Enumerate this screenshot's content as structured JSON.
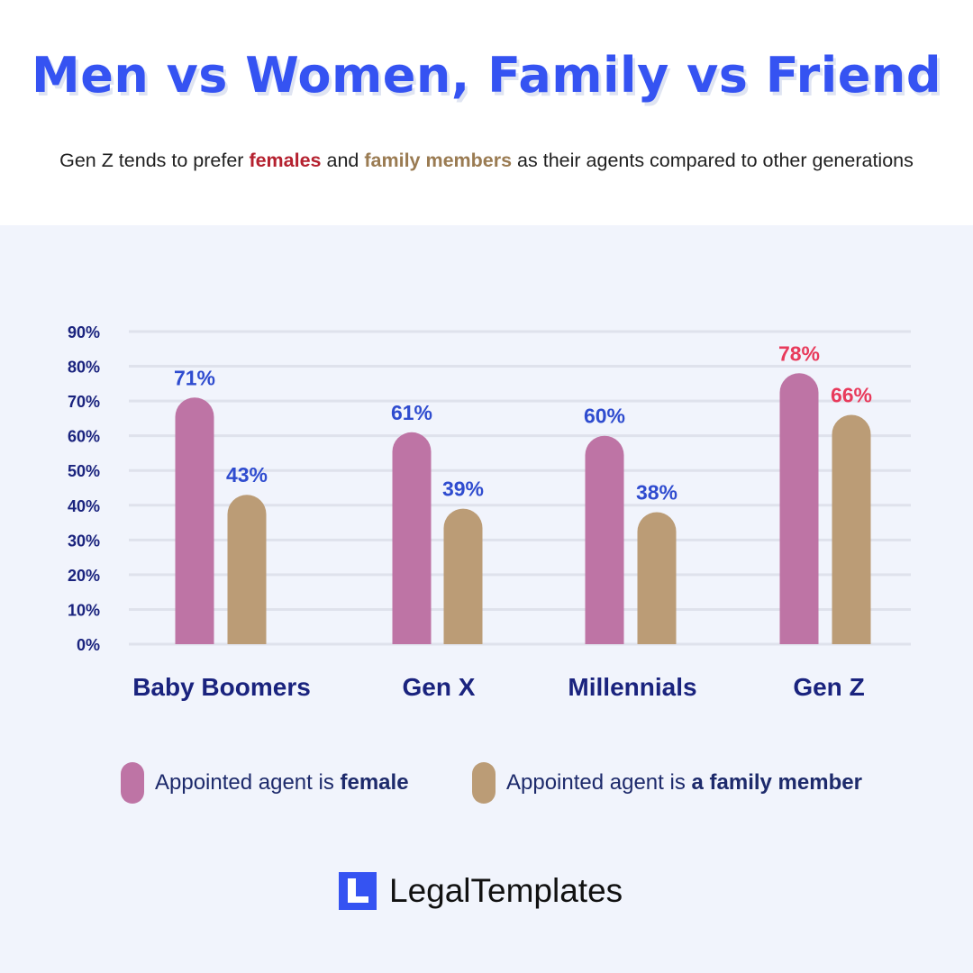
{
  "header": {
    "title": "Men vs Women, Family vs Friend",
    "subtitle_pre": "Gen Z tends to prefer ",
    "subtitle_female": "females",
    "subtitle_mid": " and ",
    "subtitle_family": "family members",
    "subtitle_post": " as their agents compared to other generations"
  },
  "legend": {
    "female_pre": "Appointed agent is ",
    "female_bold": "female",
    "family_pre": "Appointed agent is ",
    "family_bold": "a family member"
  },
  "brand": {
    "name": "LegalTemplates"
  },
  "colors": {
    "female_bar": "#be74a5",
    "family_bar": "#bb9c76",
    "label_default": "#2f4ccf",
    "label_highlight": "#e83a5b",
    "axis_text": "#1a237e",
    "grid": "#dfe2ec"
  },
  "chart_data": {
    "type": "bar",
    "title": "Men vs Women, Family vs Friend",
    "categories": [
      "Baby Boomers",
      "Gen X",
      "Millennials",
      "Gen Z"
    ],
    "series": [
      {
        "name": "Appointed agent is female",
        "values": [
          71,
          61,
          60,
          78
        ]
      },
      {
        "name": "Appointed agent is a family member",
        "values": [
          43,
          39,
          38,
          66
        ]
      }
    ],
    "data_labels": [
      [
        "71%",
        "61%",
        "60%",
        "78%"
      ],
      [
        "43%",
        "39%",
        "38%",
        "66%"
      ]
    ],
    "highlight_category": "Gen Z",
    "yticks": [
      "0%",
      "10%",
      "20%",
      "30%",
      "40%",
      "50%",
      "60%",
      "70%",
      "80%",
      "90%"
    ],
    "ylim": [
      0,
      90
    ],
    "xlabel": "",
    "ylabel": "",
    "grid": true,
    "legend_position": "bottom"
  }
}
